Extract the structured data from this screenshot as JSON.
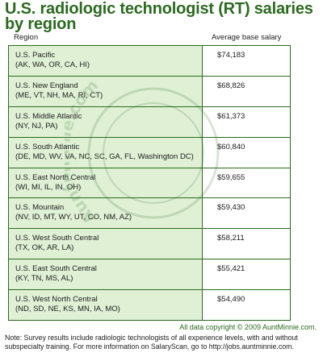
{
  "chart_data": {
    "type": "table",
    "title": "U.S. radiologic technologist (RT) salaries by region",
    "columns": [
      "Region",
      "Average base salary"
    ],
    "rows": [
      {
        "region": "U.S. Pacific",
        "states": "(AK, WA, OR, CA, HI)",
        "salary": "$74,183",
        "value": 74183
      },
      {
        "region": "U.S. New England",
        "states": "(ME, VT, NH, MA, RI, CT)",
        "salary": "$68,826",
        "value": 68826
      },
      {
        "region": "U.S. Middle Atlantic",
        "states": "(NY, NJ, PA)",
        "salary": "$61,373",
        "value": 61373
      },
      {
        "region": "U.S. South Atlantic",
        "states": "(DE, MD, WV, VA, NC, SC, GA, FL, Washington DC)",
        "salary": "$60,840",
        "value": 60840
      },
      {
        "region": "U.S. East North Central",
        "states": "(WI, MI, IL, IN, OH)",
        "salary": "$59,655",
        "value": 59655
      },
      {
        "region": "U.S. Mountain",
        "states": "(NV, ID, MT, WY, UT, CO, NM, AZ)",
        "salary": "$59,430",
        "value": 59430
      },
      {
        "region": "U.S. West South Central",
        "states": "(TX, OK, AR, LA)",
        "salary": "$58,211",
        "value": 58211
      },
      {
        "region": "U.S. East South Central",
        "states": "(KY, TN, MS, AL)",
        "salary": "$55,421",
        "value": 55421
      },
      {
        "region": "U.S. West North Central",
        "states": "(ND, SD, NE, KS, MN, IA, MO)",
        "salary": "$54,490",
        "value": 54490
      }
    ]
  },
  "watermark_text": "AuntMinnie.com",
  "copyright": "All data copyright © 2009 AuntMinnie.com.",
  "note": "Note: Survey results include radiologic technologists of all experience levels, with and without subspecialty training. For more information on SalaryScan, go to http://jobs.auntminnie.com.",
  "colors": {
    "accent": "#2b6a1f",
    "region_cell_bg": "#dff0d5"
  }
}
